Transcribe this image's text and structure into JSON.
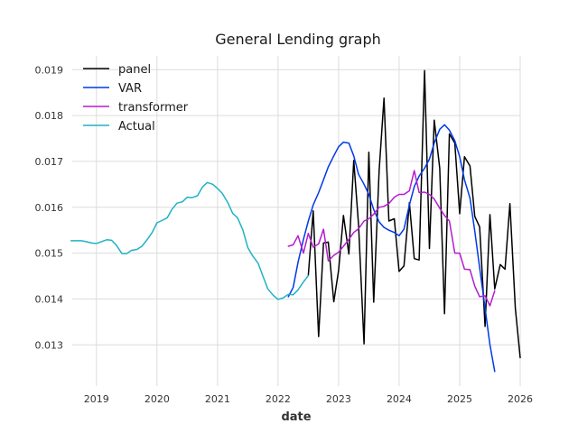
{
  "chart_data": {
    "type": "line",
    "title": "General Lending graph",
    "xlabel": "date",
    "ylabel": "",
    "xlim": [
      2018.6,
      2026.0
    ],
    "ylim": [
      0.0121,
      0.0193
    ],
    "xticks": [
      2019,
      2020,
      2021,
      2022,
      2023,
      2024,
      2025,
      2026
    ],
    "xtick_labels": [
      "2019",
      "2020",
      "2021",
      "2022",
      "2023",
      "2024",
      "2025",
      "2026"
    ],
    "yticks": [
      0.013,
      0.014,
      0.015,
      0.016,
      0.017,
      0.018,
      0.019
    ],
    "ytick_labels": [
      "0.013",
      "0.014",
      "0.015",
      "0.016",
      "0.017",
      "0.018",
      "0.019"
    ],
    "grid": true,
    "legend_position": "top-left",
    "series": [
      {
        "name": "panel",
        "color": "#000000",
        "x": [
          2022.5,
          2022.58,
          2022.67,
          2022.75,
          2022.83,
          2022.92,
          2023.0,
          2023.08,
          2023.17,
          2023.25,
          2023.33,
          2023.42,
          2023.5,
          2023.58,
          2023.67,
          2023.75,
          2023.83,
          2023.92,
          2024.0,
          2024.08,
          2024.17,
          2024.25,
          2024.33,
          2024.42,
          2024.5,
          2024.58,
          2024.67,
          2024.75,
          2024.83,
          2024.92,
          2025.0,
          2025.08,
          2025.17,
          2025.25,
          2025.33,
          2025.42,
          2025.5,
          2025.58,
          2025.67,
          2025.75,
          2025.83,
          2025.92,
          2026.0
        ],
        "y": [
          0.01452,
          0.01592,
          0.01318,
          0.01522,
          0.01524,
          0.01394,
          0.01462,
          0.01582,
          0.01498,
          0.01702,
          0.01562,
          0.01302,
          0.0172,
          0.01393,
          0.0168,
          0.01838,
          0.0157,
          0.01575,
          0.0146,
          0.01472,
          0.0161,
          0.01488,
          0.01485,
          0.01898,
          0.0151,
          0.0179,
          0.01685,
          0.01368,
          0.0176,
          0.0174,
          0.01586,
          0.0171,
          0.0169,
          0.0158,
          0.01557,
          0.0134,
          0.01584,
          0.01422,
          0.01475,
          0.01465,
          0.01608,
          0.0138,
          0.01272
        ]
      },
      {
        "name": "VAR",
        "color": "#0039e8",
        "x": [
          2022.17,
          2022.25,
          2022.33,
          2022.42,
          2022.5,
          2022.58,
          2022.67,
          2022.75,
          2022.83,
          2022.92,
          2023.0,
          2023.08,
          2023.17,
          2023.25,
          2023.33,
          2023.42,
          2023.5,
          2023.58,
          2023.67,
          2023.75,
          2023.83,
          2023.92,
          2024.0,
          2024.08,
          2024.17,
          2024.25,
          2024.33,
          2024.42,
          2024.5,
          2024.58,
          2024.67,
          2024.75,
          2024.83,
          2024.92,
          2025.0,
          2025.08,
          2025.17,
          2025.25,
          2025.33,
          2025.42,
          2025.5,
          2025.58
        ],
        "y": [
          0.01405,
          0.01425,
          0.0148,
          0.0153,
          0.0157,
          0.01605,
          0.01632,
          0.0166,
          0.01688,
          0.01712,
          0.01732,
          0.01742,
          0.0174,
          0.01712,
          0.01672,
          0.0165,
          0.01628,
          0.01595,
          0.01568,
          0.01556,
          0.0155,
          0.01545,
          0.01538,
          0.01552,
          0.01605,
          0.01645,
          0.01668,
          0.01685,
          0.01705,
          0.0174,
          0.0177,
          0.0178,
          0.01768,
          0.01745,
          0.0171,
          0.0166,
          0.0162,
          0.01548,
          0.01468,
          0.0138,
          0.013,
          0.01242
        ]
      },
      {
        "name": "transformer",
        "color": "#b51ccf",
        "x": [
          2022.17,
          2022.25,
          2022.33,
          2022.42,
          2022.5,
          2022.58,
          2022.67,
          2022.75,
          2022.83,
          2022.92,
          2023.0,
          2023.08,
          2023.17,
          2023.25,
          2023.33,
          2023.42,
          2023.5,
          2023.58,
          2023.67,
          2023.75,
          2023.83,
          2023.92,
          2024.0,
          2024.08,
          2024.17,
          2024.25,
          2024.33,
          2024.42,
          2024.5,
          2024.58,
          2024.67,
          2024.75,
          2024.83,
          2024.92,
          2025.0,
          2025.08,
          2025.17,
          2025.25,
          2025.33,
          2025.42,
          2025.5,
          2025.58
        ],
        "y": [
          0.01515,
          0.01518,
          0.01538,
          0.015,
          0.01543,
          0.01513,
          0.0152,
          0.01552,
          0.01483,
          0.01495,
          0.01502,
          0.01515,
          0.0153,
          0.01545,
          0.01553,
          0.0157,
          0.01575,
          0.01585,
          0.016,
          0.01602,
          0.01608,
          0.01622,
          0.01628,
          0.01628,
          0.01636,
          0.0168,
          0.01632,
          0.01633,
          0.01628,
          0.01618,
          0.01598,
          0.01582,
          0.0157,
          0.015,
          0.015,
          0.01465,
          0.01464,
          0.01428,
          0.01405,
          0.01407,
          0.01385,
          0.01418
        ]
      },
      {
        "name": "Actual",
        "color": "#1fb3c4",
        "x": [
          2018.58,
          2018.67,
          2018.75,
          2018.83,
          2018.92,
          2019.0,
          2019.08,
          2019.17,
          2019.25,
          2019.33,
          2019.42,
          2019.5,
          2019.58,
          2019.67,
          2019.75,
          2019.83,
          2019.92,
          2020.0,
          2020.08,
          2020.17,
          2020.25,
          2020.33,
          2020.42,
          2020.5,
          2020.58,
          2020.67,
          2020.75,
          2020.83,
          2020.92,
          2021.0,
          2021.08,
          2021.17,
          2021.25,
          2021.33,
          2021.42,
          2021.5,
          2021.58,
          2021.67,
          2021.75,
          2021.83,
          2021.92,
          2022.0,
          2022.08,
          2022.17,
          2022.25,
          2022.33,
          2022.42,
          2022.5
        ],
        "y": [
          0.01527,
          0.01527,
          0.01527,
          0.01525,
          0.01522,
          0.01521,
          0.01525,
          0.01529,
          0.01528,
          0.01517,
          0.01499,
          0.01499,
          0.01506,
          0.01508,
          0.01515,
          0.01528,
          0.01545,
          0.01566,
          0.01571,
          0.01577,
          0.01596,
          0.01609,
          0.01612,
          0.01622,
          0.01621,
          0.01625,
          0.01644,
          0.01654,
          0.0165,
          0.01641,
          0.0163,
          0.0161,
          0.01587,
          0.01577,
          0.0155,
          0.01512,
          0.01494,
          0.01478,
          0.0145,
          0.01422,
          0.01408,
          0.01399,
          0.01402,
          0.0141,
          0.01409,
          0.0142,
          0.01437,
          0.01451
        ]
      }
    ]
  }
}
